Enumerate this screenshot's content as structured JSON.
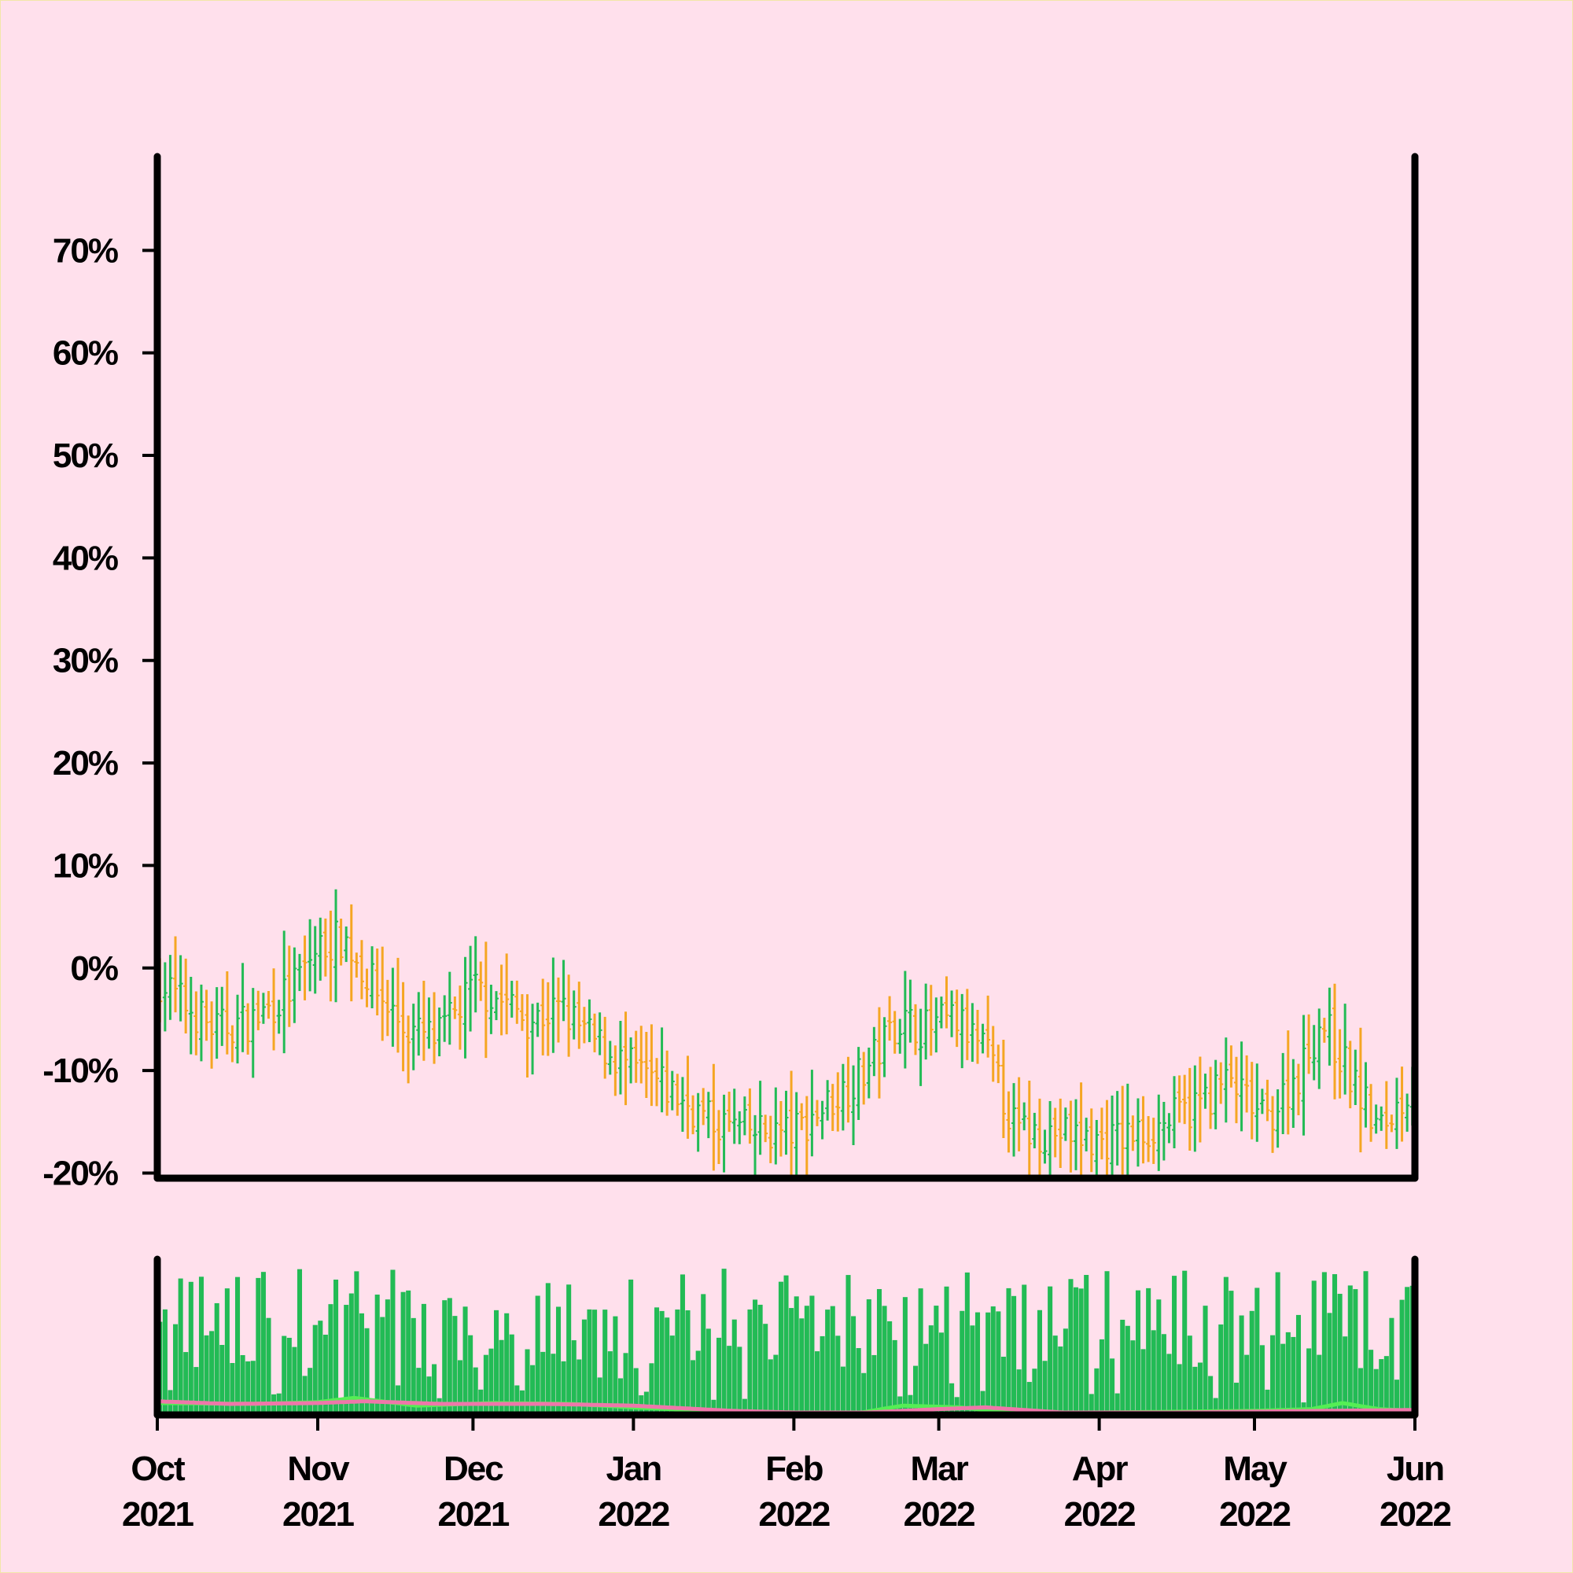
{
  "colors": {
    "background": "#ffe0ec",
    "border": "#f3e6a8",
    "axis": "#000000",
    "up_bar": "#22bb55",
    "down_bar": "#f5a623",
    "volume": "#22bb55",
    "volume_ma_fast": "#55ee55",
    "volume_ma_slow": "#ee77aa"
  },
  "chart_data": [
    {
      "type": "ohlc",
      "title": "",
      "xlabel": "",
      "ylabel": "",
      "y_unit": "%",
      "ylim": [
        -20.5,
        79
      ],
      "xlim": [
        "2021-10-01",
        "2022-06-01"
      ],
      "grid": false,
      "y_ticks": [
        -20,
        -10,
        0,
        10,
        20,
        30,
        40,
        50,
        60,
        70
      ],
      "y_tick_labels": [
        "-20%",
        "-10%",
        "0%",
        "10%",
        "20%",
        "30%",
        "40%",
        "50%",
        "60%",
        "70%"
      ],
      "x_ticks": [
        "2021-10-01",
        "2021-11-01",
        "2021-12-01",
        "2022-01-01",
        "2022-02-01",
        "2022-03-01",
        "2022-04-01",
        "2022-05-01",
        "2022-06-01"
      ],
      "x_tick_labels": [
        [
          "Oct",
          "2021"
        ],
        [
          "Nov",
          "2021"
        ],
        [
          "Dec",
          "2021"
        ],
        [
          "Jan",
          "2022"
        ],
        [
          "Feb",
          "2022"
        ],
        [
          "Mar",
          "2022"
        ],
        [
          "Apr",
          "2022"
        ],
        [
          "May",
          "2022"
        ],
        [
          "Jun",
          "2022"
        ]
      ],
      "close_anchors": {
        "dates": [
          "2021-10-01",
          "2021-10-05",
          "2021-10-12",
          "2021-10-20",
          "2021-10-27",
          "2021-11-01",
          "2021-11-06",
          "2021-11-12",
          "2021-11-18",
          "2021-11-24",
          "2021-12-01",
          "2021-12-06",
          "2021-12-12",
          "2021-12-18",
          "2021-12-24",
          "2022-01-01",
          "2022-01-08",
          "2022-01-16",
          "2022-01-24",
          "2022-02-01",
          "2022-02-08",
          "2022-02-15",
          "2022-02-21",
          "2022-02-27",
          "2022-03-04",
          "2022-03-10",
          "2022-03-16",
          "2022-03-24",
          "2022-04-01",
          "2022-04-10",
          "2022-04-18",
          "2022-04-26",
          "2022-05-03",
          "2022-05-10",
          "2022-05-14",
          "2022-05-20",
          "2022-05-25",
          "2022-06-01"
        ],
        "values": [
          -1,
          -3,
          -6,
          -5,
          -2,
          2,
          3,
          -2,
          -6,
          -7,
          -2,
          -3,
          -5,
          -4,
          -7,
          -10,
          -12,
          -15,
          -16,
          -16,
          -13,
          -10,
          -5,
          -6,
          -5,
          -8,
          -16,
          -16,
          -17,
          -16,
          -14,
          -11,
          -15,
          -10,
          -5,
          -11,
          -16,
          -11
        ]
      },
      "bar_range_pct": [
        2,
        7
      ]
    },
    {
      "type": "bar",
      "title": "",
      "xlabel": "",
      "ylabel": "",
      "role": "volume",
      "xlim": [
        "2021-10-01",
        "2022-06-01"
      ],
      "ylim": [
        0,
        1
      ],
      "volume_range": [
        0.08,
        0.99
      ],
      "moving_averages": [
        {
          "dates": [
            "2021-10-01",
            "2021-10-20",
            "2021-11-01",
            "2021-11-08",
            "2021-11-20",
            "2021-12-05",
            "2021-12-20",
            "2022-01-01",
            "2022-01-15",
            "2022-02-01",
            "2022-02-14",
            "2022-02-22",
            "2022-03-05",
            "2022-03-15",
            "2022-04-01",
            "2022-05-01",
            "2022-05-12",
            "2022-05-18",
            "2022-05-25",
            "2022-06-01"
          ],
          "values": [
            0.11,
            0.1,
            0.12,
            0.17,
            0.08,
            0.11,
            0.1,
            0.06,
            0.02,
            0.0,
            0.0,
            0.08,
            0.06,
            0.0,
            0.0,
            0.02,
            0.04,
            0.11,
            0.04,
            0.02
          ]
        },
        {
          "dates": [
            "2021-10-01",
            "2021-10-15",
            "2021-11-01",
            "2021-11-10",
            "2021-11-25",
            "2021-12-15",
            "2022-01-01",
            "2022-01-20",
            "2022-02-01",
            "2022-02-15",
            "2022-03-01",
            "2022-03-10",
            "2022-03-25",
            "2022-04-15",
            "2022-05-15",
            "2022-06-01"
          ],
          "values": [
            0.13,
            0.1,
            0.11,
            0.13,
            0.1,
            0.1,
            0.08,
            0.02,
            0.0,
            0.0,
            0.04,
            0.06,
            0.0,
            0.0,
            0.02,
            0.03
          ]
        }
      ]
    }
  ]
}
